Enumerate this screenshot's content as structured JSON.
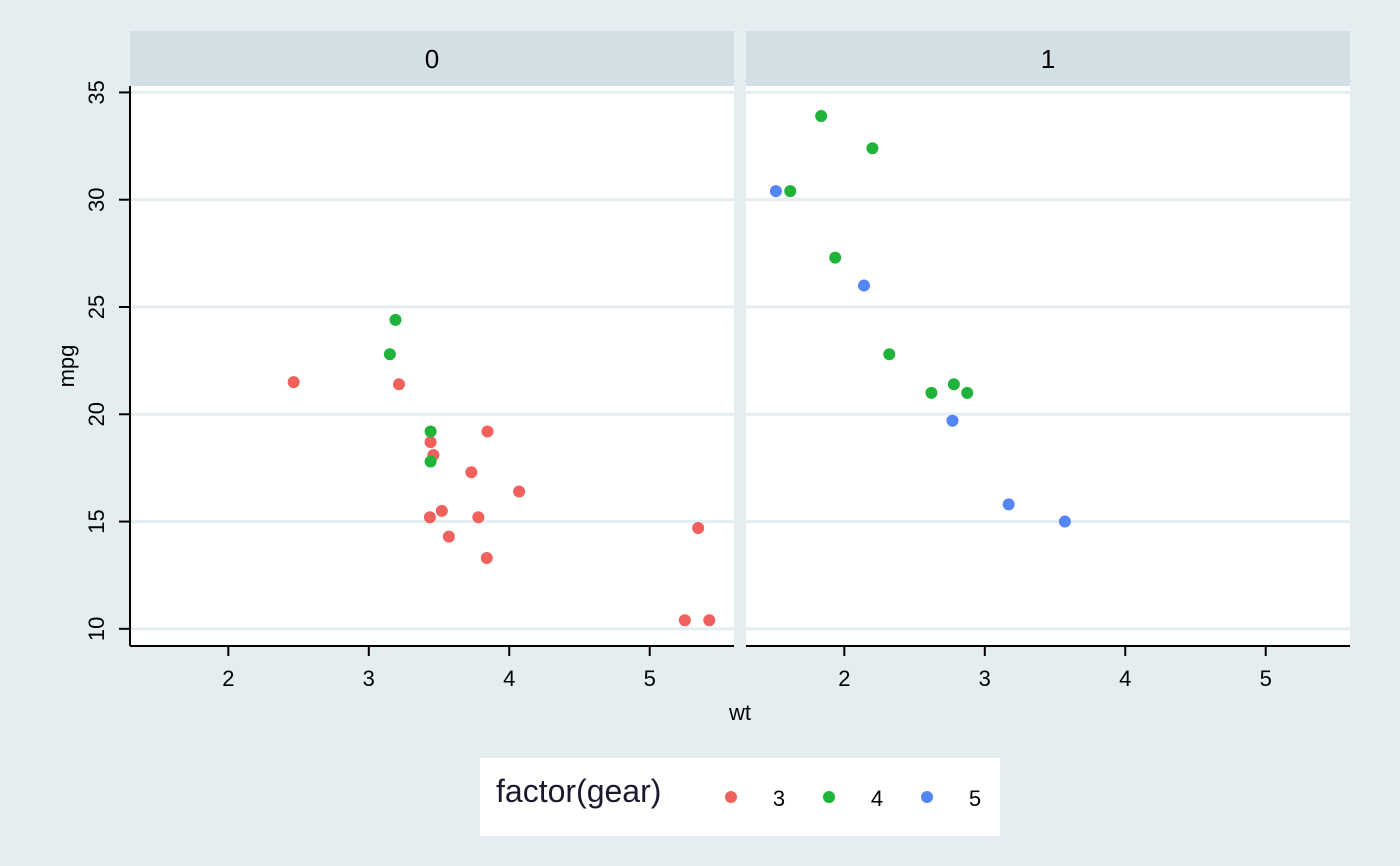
{
  "chart_data": {
    "type": "scatter",
    "title": "",
    "xlabel": "wt",
    "ylabel": "mpg",
    "xlim": [
      1.3,
      5.6
    ],
    "ylim": [
      9.2,
      35.3
    ],
    "x_ticks": [
      2,
      3,
      4,
      5
    ],
    "y_ticks": [
      10,
      15,
      20,
      25,
      30,
      35
    ],
    "grid": true,
    "legend_position": "bottom",
    "legend": {
      "title": "factor(gear)",
      "entries": [
        {
          "label": "3",
          "color": "#f0605d"
        },
        {
          "label": "4",
          "color": "#1fb33a"
        },
        {
          "label": "5",
          "color": "#5485f4"
        }
      ]
    },
    "panels": [
      {
        "label": "0",
        "series": [
          {
            "group": "3",
            "color": "#f0605d",
            "points": [
              [
                2.465,
                21.5
              ],
              [
                3.215,
                21.4
              ],
              [
                3.44,
                18.7
              ],
              [
                3.46,
                18.1
              ],
              [
                3.845,
                19.2
              ],
              [
                3.73,
                17.3
              ],
              [
                4.07,
                16.4
              ],
              [
                3.52,
                15.5
              ],
              [
                3.435,
                15.2
              ],
              [
                3.78,
                15.2
              ],
              [
                3.57,
                14.3
              ],
              [
                3.84,
                13.3
              ],
              [
                5.345,
                14.7
              ],
              [
                5.25,
                10.4
              ],
              [
                5.424,
                10.4
              ]
            ]
          },
          {
            "group": "4",
            "color": "#1fb33a",
            "points": [
              [
                3.19,
                24.4
              ],
              [
                3.15,
                22.8
              ],
              [
                3.44,
                19.2
              ],
              [
                3.44,
                17.8
              ]
            ]
          }
        ]
      },
      {
        "label": "1",
        "series": [
          {
            "group": "4",
            "color": "#1fb33a",
            "points": [
              [
                1.835,
                33.9
              ],
              [
                2.2,
                32.4
              ],
              [
                1.615,
                30.4
              ],
              [
                1.935,
                27.3
              ],
              [
                2.32,
                22.8
              ],
              [
                2.62,
                21.0
              ],
              [
                2.78,
                21.4
              ],
              [
                2.875,
                21.0
              ]
            ]
          },
          {
            "group": "5",
            "color": "#5485f4",
            "points": [
              [
                1.513,
                30.4
              ],
              [
                2.14,
                26.0
              ],
              [
                2.77,
                19.7
              ],
              [
                3.17,
                15.8
              ],
              [
                3.57,
                15.0
              ]
            ]
          }
        ]
      }
    ]
  }
}
